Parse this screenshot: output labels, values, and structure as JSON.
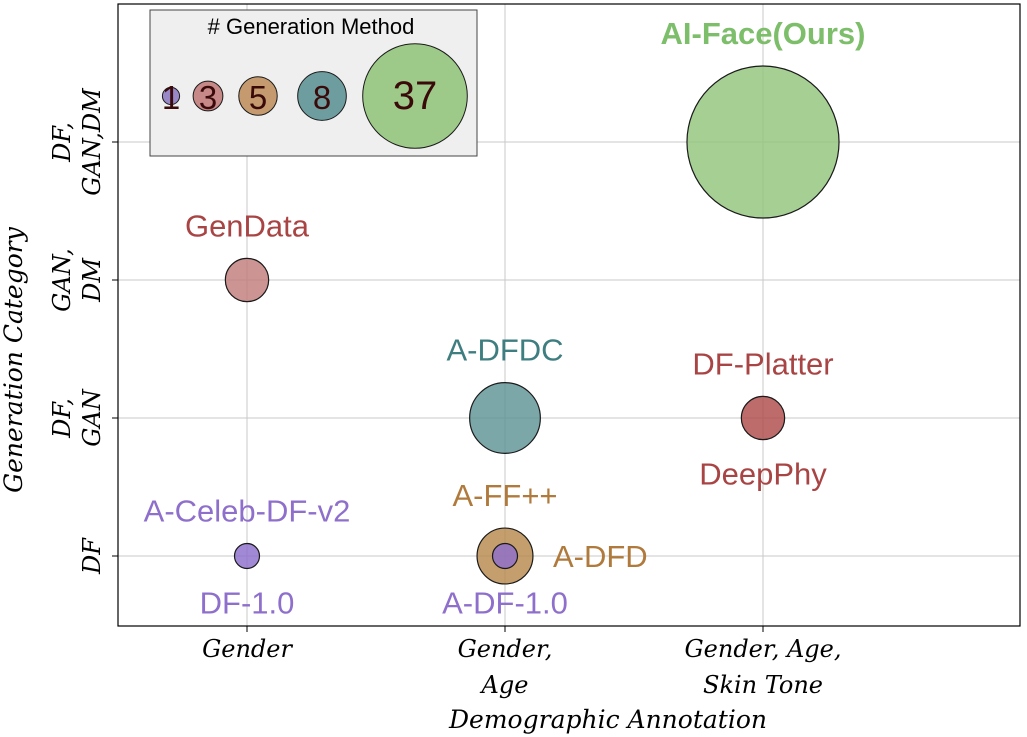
{
  "chart_data": {
    "type": "scatter",
    "title": "",
    "xlabel": "Demographic Annotation",
    "ylabel": "Generation Category",
    "x_categories": [
      [
        "Gender"
      ],
      [
        "Gender,",
        "Age"
      ],
      [
        "Gender, Age,",
        "Skin Tone"
      ]
    ],
    "y_categories": [
      [
        "DF"
      ],
      [
        "DF,",
        "GAN"
      ],
      [
        "GAN,",
        "DM"
      ],
      [
        "DF,",
        "GAN,DM"
      ]
    ],
    "grid": true,
    "size_legend": {
      "title": "# Generation Method",
      "position": "top-left",
      "entries": [
        {
          "value": 1,
          "label": "1",
          "color": "#8E7CC3"
        },
        {
          "value": 3,
          "label": "3",
          "color": "#C27C7C"
        },
        {
          "value": 5,
          "label": "5",
          "color": "#C09060"
        },
        {
          "value": 8,
          "label": "8",
          "color": "#5E9495"
        },
        {
          "value": 37,
          "label": "37",
          "color": "#93C47D"
        }
      ]
    },
    "points": [
      {
        "name": "A-Celeb-DF-v2",
        "x": 0,
        "y": 0,
        "size": 1,
        "color": "#8E6FCC",
        "label_color": "#8E6FCC",
        "label_side": "above"
      },
      {
        "name": "DF-1.0",
        "x": 0,
        "y": 0,
        "size": 1,
        "color": "#8E6FCC",
        "label_color": "#8E6FCC",
        "label_side": "below"
      },
      {
        "name": "A-FF++",
        "x": 1,
        "y": 0,
        "size": 5,
        "color": "#B8894E",
        "label_color": "#B07A3C",
        "label_side": "above"
      },
      {
        "name": "A-DFD",
        "x": 1,
        "y": 0,
        "size": 5,
        "color": "#B8894E",
        "label_color": "#B07A3C",
        "label_side": "right"
      },
      {
        "name": "A-DF-1.0",
        "x": 1,
        "y": 0,
        "size": 1,
        "color": "#8E6FCC",
        "label_color": "#8E6FCC",
        "label_side": "below"
      },
      {
        "name": "A-DFDC",
        "x": 1,
        "y": 1,
        "size": 8,
        "color": "#5E9495",
        "label_color": "#3F7E80",
        "label_side": "above"
      },
      {
        "name": "DF-Platter",
        "x": 2,
        "y": 1,
        "size": 3,
        "color": "#B04A4A",
        "label_color": "#A94444",
        "label_side": "above"
      },
      {
        "name": "DeepPhy",
        "x": 2,
        "y": 1,
        "size": 3,
        "color": "#B04A4A",
        "label_color": "#A94444",
        "label_side": "below"
      },
      {
        "name": "GenData",
        "x": 0,
        "y": 2,
        "size": 3,
        "color": "#C27C7C",
        "label_color": "#A94444",
        "label_side": "above"
      },
      {
        "name": "AI-Face(Ours)",
        "x": 2,
        "y": 3,
        "size": 37,
        "color": "#93C47D",
        "label_color": "#7DBE6A",
        "label_side": "above"
      }
    ]
  }
}
